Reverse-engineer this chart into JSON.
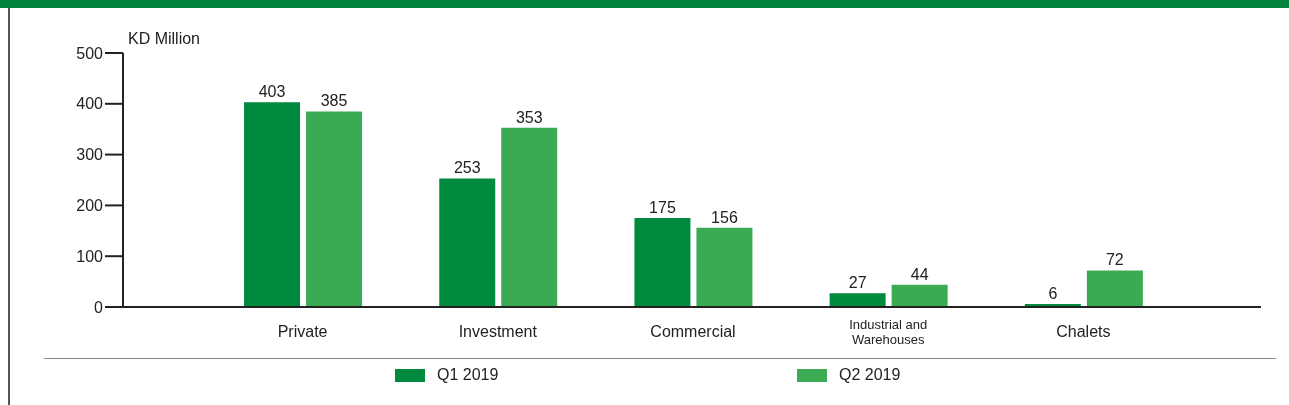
{
  "chart_data": {
    "type": "bar",
    "ylabel": "KD Million",
    "categories": [
      "Private",
      "Investment",
      "Commercial",
      "Industrial and Warehouses",
      "Chalets"
    ],
    "series": [
      {
        "name": "Q1 2019",
        "color": "#008a3e",
        "values": [
          403,
          253,
          175,
          27,
          6
        ]
      },
      {
        "name": "Q2 2019",
        "color": "#3aab53",
        "values": [
          385,
          353,
          156,
          44,
          72
        ]
      }
    ],
    "ylim": [
      0,
      500
    ],
    "yticks": [
      0,
      100,
      200,
      300,
      400,
      500
    ],
    "data_labels": true,
    "grid": false,
    "legend": "bottom"
  }
}
